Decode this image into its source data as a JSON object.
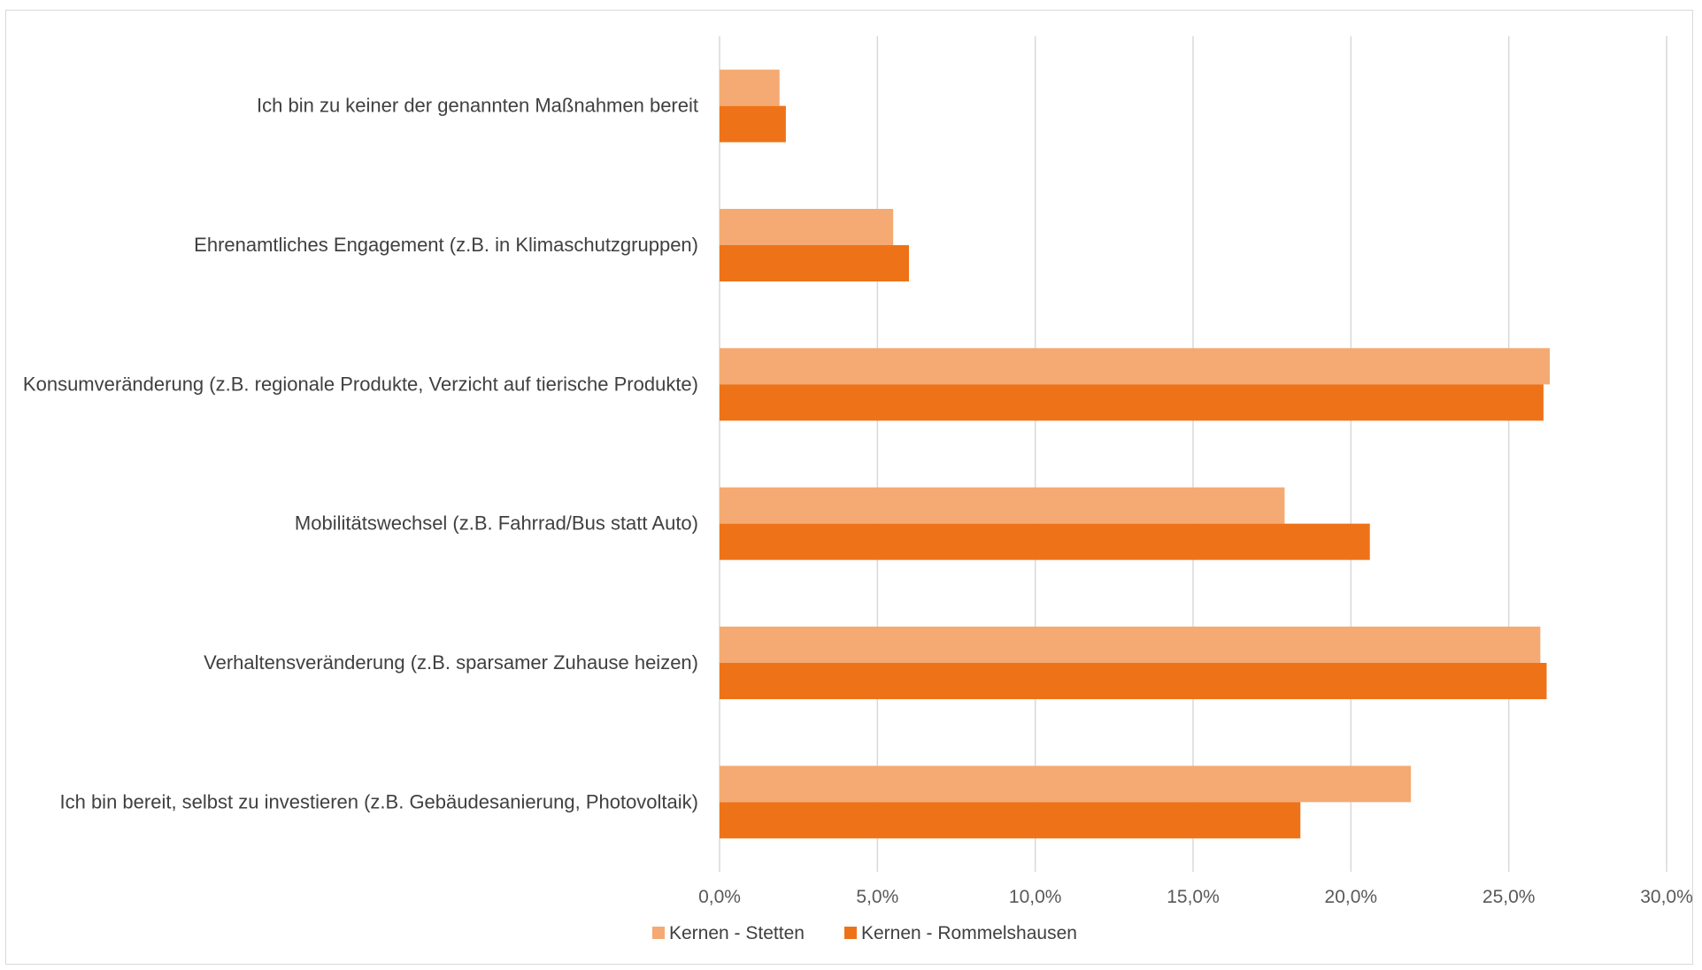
{
  "chart_data": {
    "type": "bar",
    "orientation": "horizontal",
    "categories": [
      "Ich bin zu keiner der genannten Maßnahmen bereit",
      "Ehrenamtliches Engagement (z.B. in Klimaschutzgruppen)",
      "Konsumveränderung (z.B. regionale Produkte, Verzicht auf tierische Produkte)",
      "Mobilitätswechsel (z.B. Fahrrad/Bus statt Auto)",
      "Verhaltensveränderung (z.B. sparsamer Zuhause heizen)",
      "Ich bin bereit, selbst zu investieren (z.B. Gebäudesanierung, Photovoltaik)"
    ],
    "series": [
      {
        "name": "Kernen - Stetten",
        "color": "#f4aa72",
        "values": [
          1.9,
          5.5,
          26.3,
          17.9,
          26.0,
          21.9
        ]
      },
      {
        "name": "Kernen - Rommelshausen",
        "color": "#ee7318",
        "values": [
          2.1,
          6.0,
          26.1,
          20.6,
          26.2,
          18.4
        ]
      }
    ],
    "xlim": [
      0,
      30
    ],
    "ticks": [
      "0,0%",
      "5,0%",
      "10,0%",
      "15,0%",
      "20,0%",
      "25,0%",
      "30,0%"
    ],
    "grid": true,
    "gridline_color": "#d9d9d9",
    "legend_position": "bottom"
  }
}
